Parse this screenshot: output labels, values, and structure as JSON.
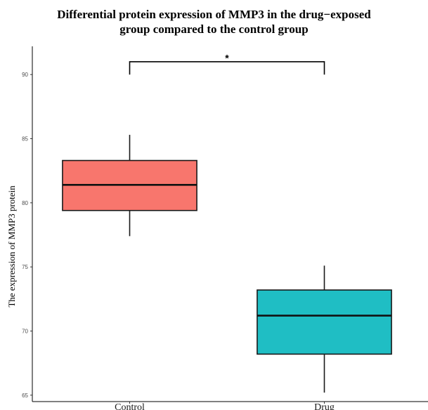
{
  "chart_data": {
    "type": "boxplot",
    "title_line1": "Differential protein expression of MMP3 in the drug−exposed",
    "title_line2": "group compared to the control group",
    "xlabel": "",
    "ylabel": "The expression of MMP3 protein",
    "ylim": [
      64.5,
      92.2
    ],
    "yticks": [
      "65",
      "70",
      "75",
      "80",
      "85",
      "90"
    ],
    "grid": false,
    "categories": [
      "Control",
      "Drug"
    ],
    "boxes": [
      {
        "category": "Control",
        "min": 77.4,
        "q1": 79.4,
        "median": 81.4,
        "q3": 83.3,
        "max": 85.3,
        "color": "#F8766D"
      },
      {
        "category": "Drug",
        "min": 65.2,
        "q1": 68.2,
        "median": 71.2,
        "q3": 73.2,
        "max": 75.1,
        "color": "#1FBEC4"
      }
    ],
    "significance": {
      "from": "Control",
      "to": "Drug",
      "y": 91.0,
      "tip_y": 90.0,
      "label": "*"
    }
  }
}
